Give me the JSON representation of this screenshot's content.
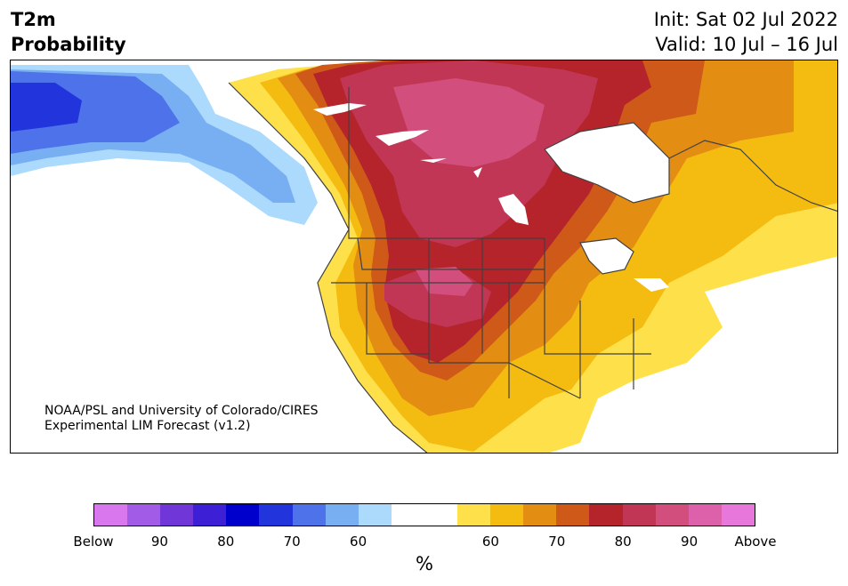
{
  "title": {
    "line1": "T2m",
    "line2": "Probability"
  },
  "dates": {
    "init": "Init: Sat 02 Jul 2022",
    "valid": "Valid: 10 Jul – 16 Jul"
  },
  "credit": {
    "line1": "NOAA/PSL and University of Colorado/CIRES",
    "line2": "Experimental LIM Forecast (v1.2)"
  },
  "colors": {
    "below_very": "#d977ee",
    "below": [
      "#d977ee",
      "#a15be6",
      "#7036d8",
      "#3d1fd5",
      "#0000cc",
      "#2235dc",
      "#4e72e9",
      "#78aff2",
      "#acdafd"
    ],
    "neutral": "#ffffff",
    "above": [
      "#fee14a",
      "#f4bb10",
      "#e38d12",
      "#ce5918",
      "#b4242a",
      "#c23655",
      "#d24e7c",
      "#dd60aa",
      "#e877db"
    ],
    "land_borders": "#404040"
  },
  "colorbar": {
    "segments": [
      "#d977ee",
      "#a15be6",
      "#7036d8",
      "#3d1fd5",
      "#0000cc",
      "#2235dc",
      "#4e72e9",
      "#78aff2",
      "#acdafd",
      "#ffffff",
      "#ffffff",
      "#fee14a",
      "#f4bb10",
      "#e38d12",
      "#ce5918",
      "#b4242a",
      "#c23655",
      "#d24e7c",
      "#dd60aa",
      "#e877db"
    ],
    "ticks": [
      "Below",
      "90",
      "80",
      "70",
      "60",
      "60",
      "70",
      "80",
      "90",
      "Above"
    ],
    "unit": "%"
  }
}
